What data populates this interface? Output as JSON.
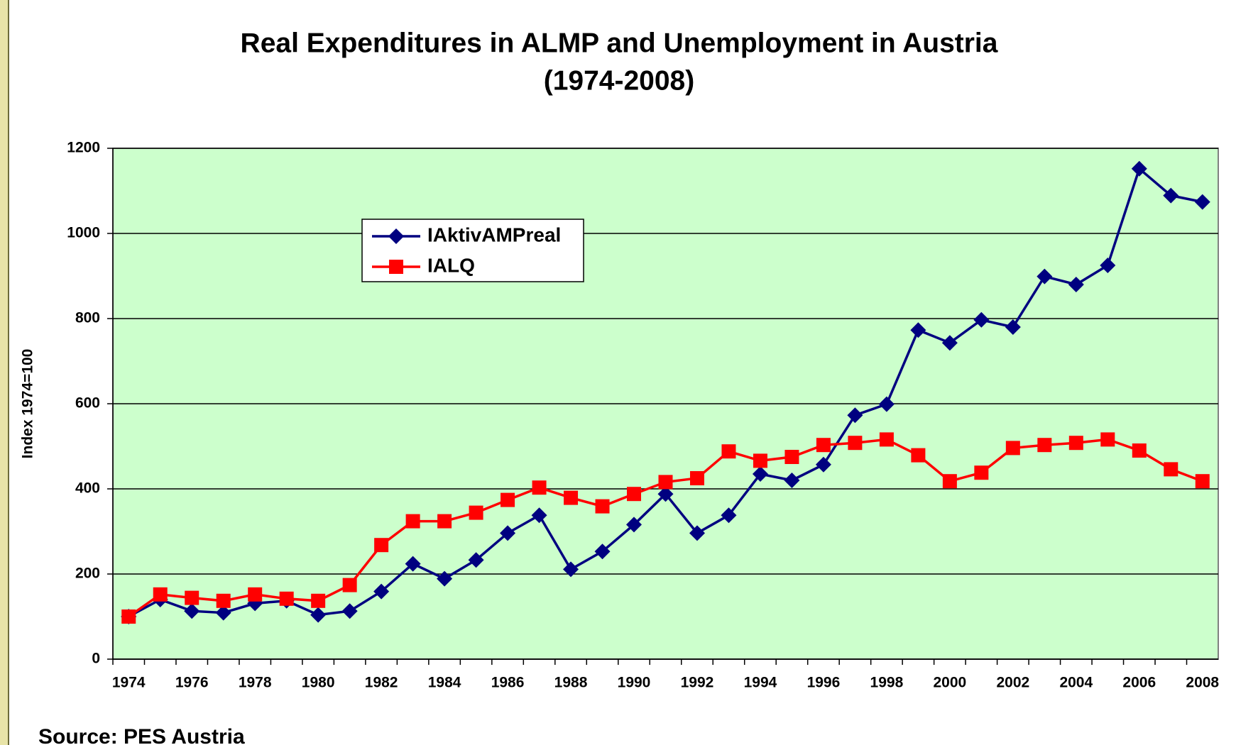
{
  "chart_data": {
    "type": "line",
    "title": "Real Expenditures in ALMP and Unemployment in Austria",
    "subtitle": "(1974-2008)",
    "y_label": "Index 1974=100",
    "source": "Source: PES Austria",
    "categories": [
      "1974",
      null,
      "1976",
      null,
      "1978",
      null,
      "1980",
      null,
      "1982",
      null,
      "1984",
      null,
      "1986",
      null,
      "1988",
      null,
      "1990",
      null,
      "1992",
      null,
      "1994",
      null,
      "1996",
      null,
      "1998",
      null,
      "2000",
      null,
      "2002",
      null,
      "2004",
      null,
      "2006",
      null,
      "2008"
    ],
    "series": [
      {
        "name": "IAktivAMPreal",
        "color": "#000080",
        "marker": "diamond",
        "values": [
          100,
          140,
          113,
          109,
          131,
          137,
          104,
          113,
          159,
          224,
          189,
          233,
          296,
          338,
          211,
          253,
          316,
          388,
          296,
          338,
          435,
          420,
          457,
          573,
          599,
          773,
          743,
          797,
          780,
          899,
          880,
          925,
          1152,
          1089,
          1074
        ]
      },
      {
        "name": "IALQ",
        "color": "#ff0000",
        "marker": "square",
        "values": [
          100,
          152,
          144,
          137,
          152,
          142,
          137,
          174,
          268,
          324,
          324,
          344,
          374,
          403,
          379,
          359,
          388,
          416,
          425,
          488,
          466,
          475,
          503,
          508,
          516,
          479,
          418,
          438,
          496,
          503,
          508,
          516,
          490,
          446,
          418
        ]
      }
    ],
    "ylim": [
      0,
      1200
    ],
    "yticks": [
      0,
      200,
      400,
      600,
      800,
      1000,
      1200
    ],
    "grid": true,
    "plot_background": "#ccffcc"
  }
}
